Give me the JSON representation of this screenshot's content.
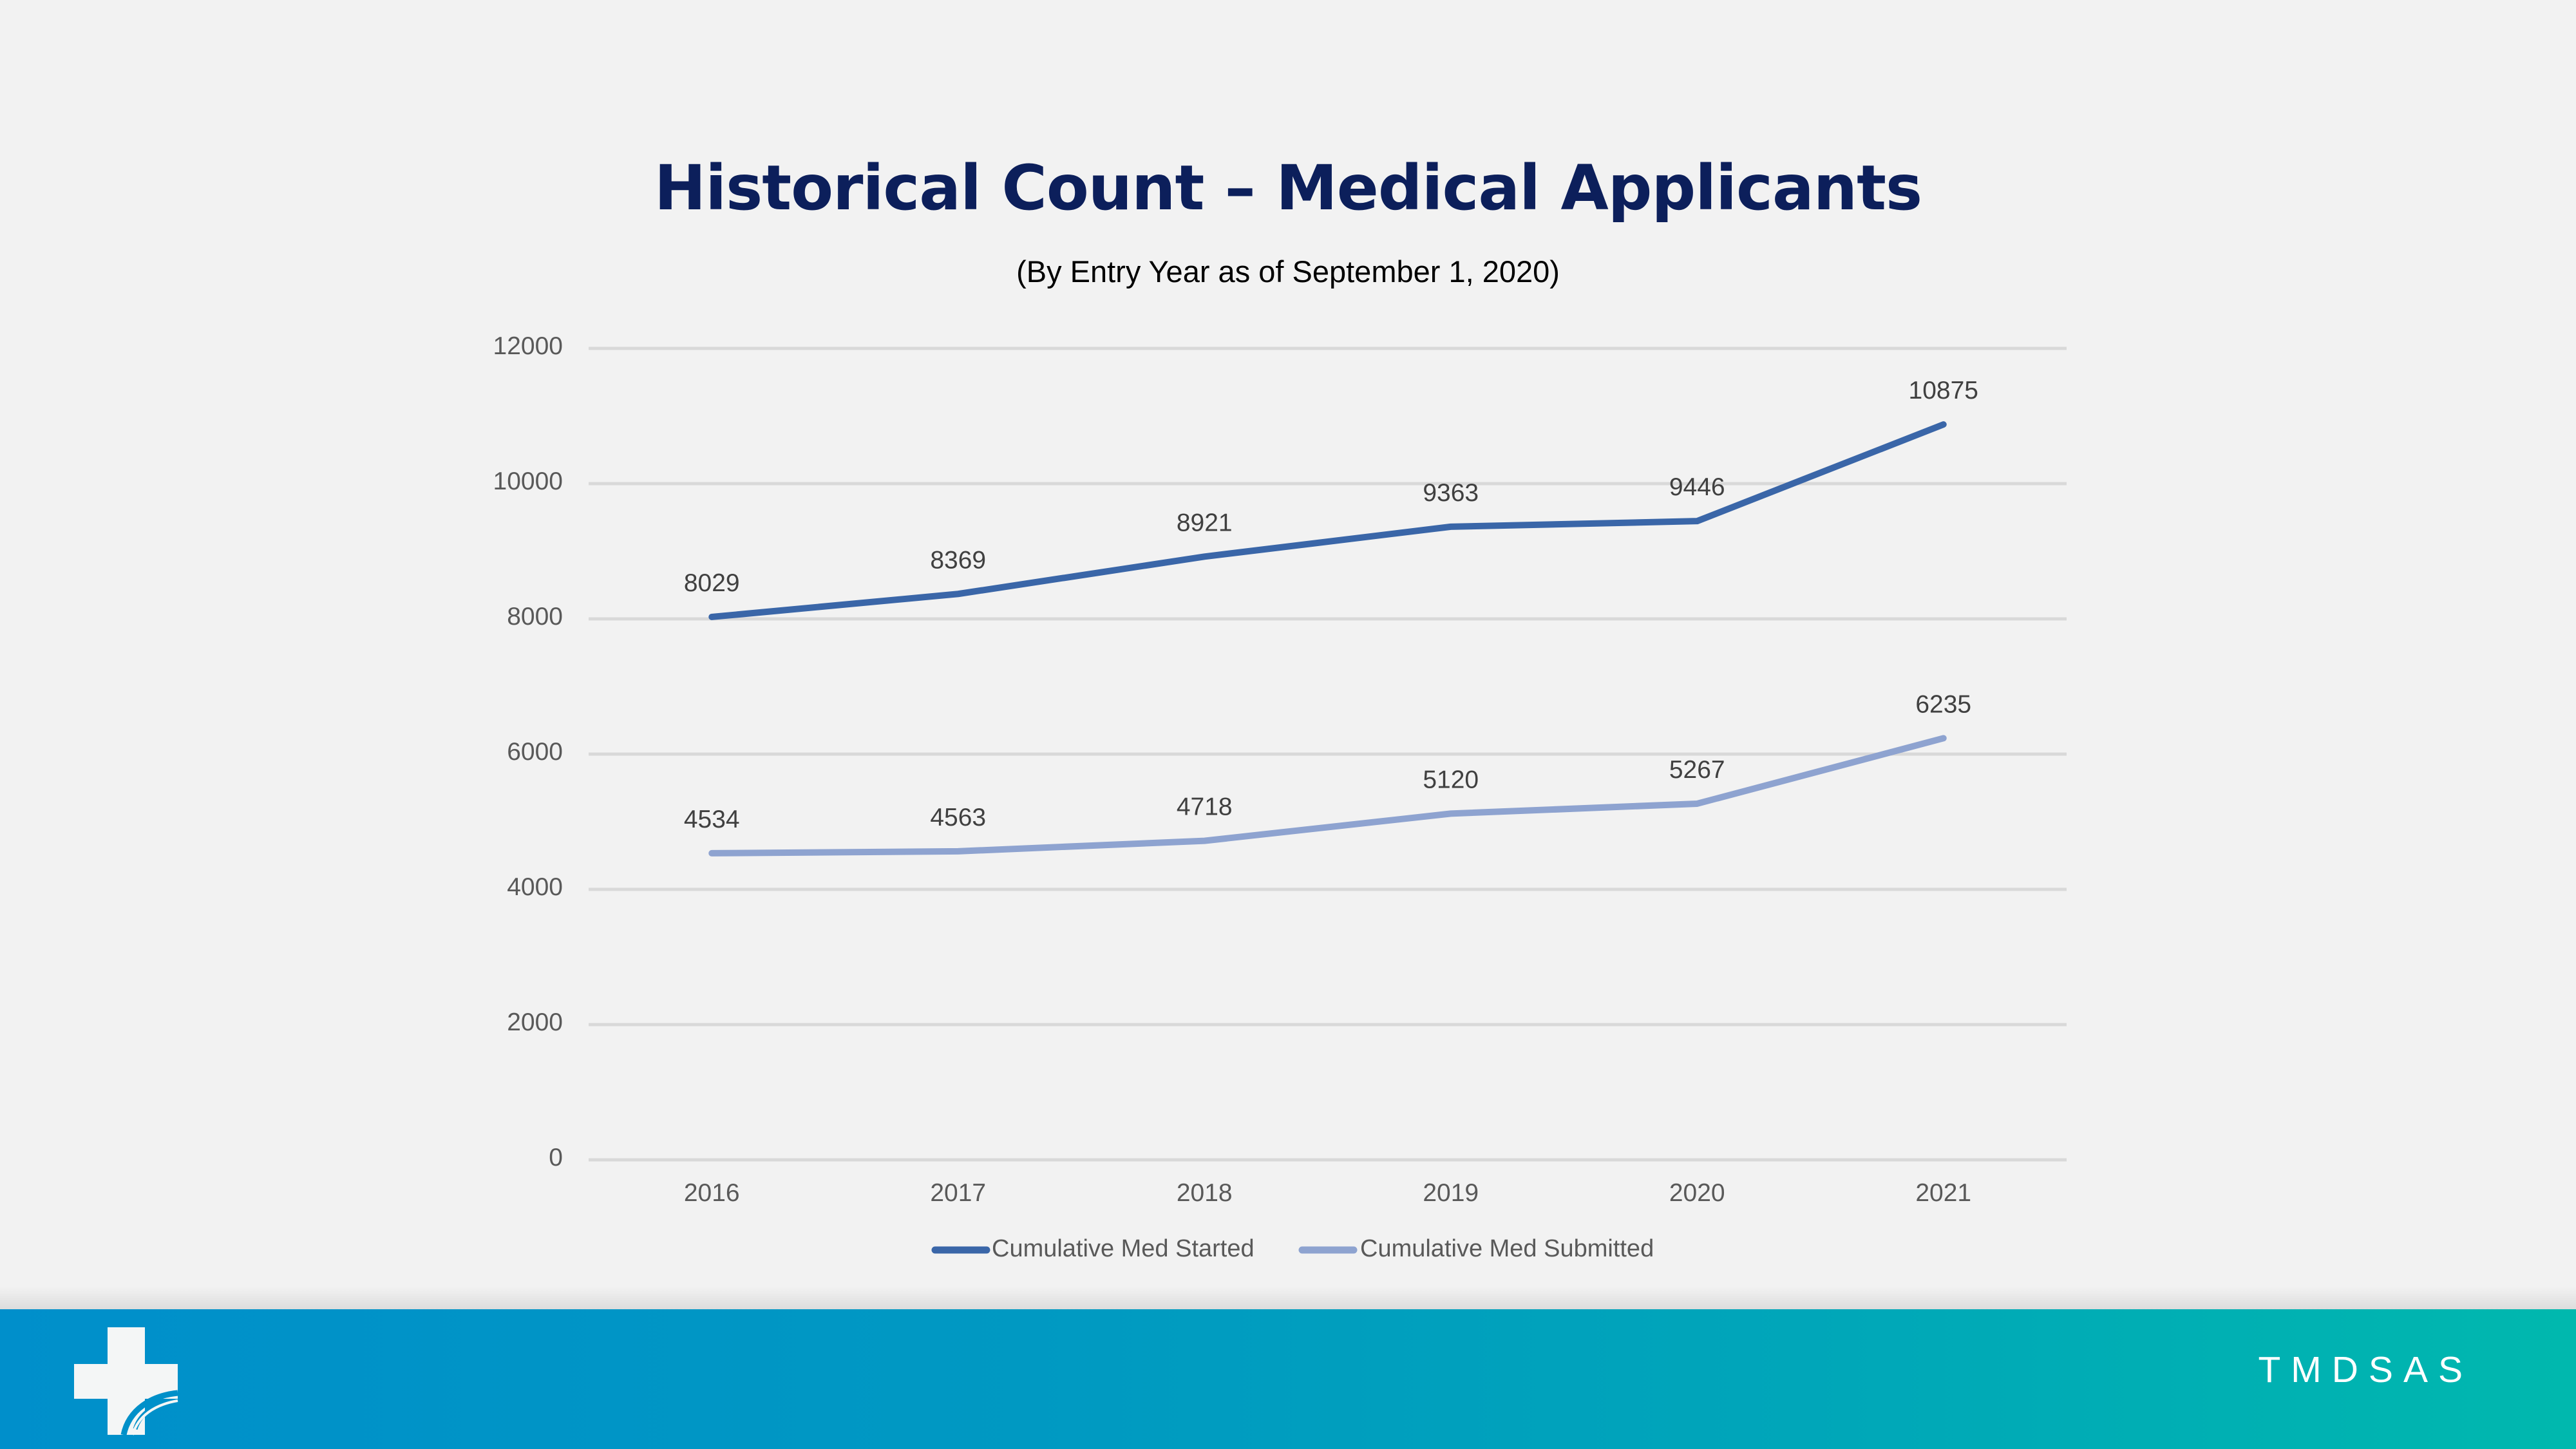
{
  "slide": {
    "title": "Historical Count – Medical Applicants",
    "subtitle": "(By Entry Year as of September 1, 2020)"
  },
  "footer": {
    "brand": "TMDSAS",
    "logo_icon": "medical-cross-logo-icon",
    "gradient_start": "#008FCB",
    "gradient_end": "#00B8AE"
  },
  "chart_data": {
    "type": "line",
    "title": "Historical Count – Medical Applicants",
    "subtitle": "(By Entry Year as of September 1, 2020)",
    "xlabel": "",
    "ylabel": "",
    "categories": [
      "2016",
      "2017",
      "2018",
      "2019",
      "2020",
      "2021"
    ],
    "ylim": [
      0,
      12000
    ],
    "yticks": [
      "0",
      "2000",
      "4000",
      "6000",
      "8000",
      "10000",
      "12000"
    ],
    "grid": true,
    "legend_position": "bottom",
    "series": [
      {
        "name": "Cumulative Med Started",
        "color": "#3A66A8",
        "values": [
          8029,
          8369,
          8921,
          9363,
          9446,
          10875
        ]
      },
      {
        "name": "Cumulative Med Submitted",
        "color": "#8EA3D0",
        "values": [
          4534,
          4563,
          4718,
          5120,
          5267,
          6235
        ]
      }
    ]
  }
}
